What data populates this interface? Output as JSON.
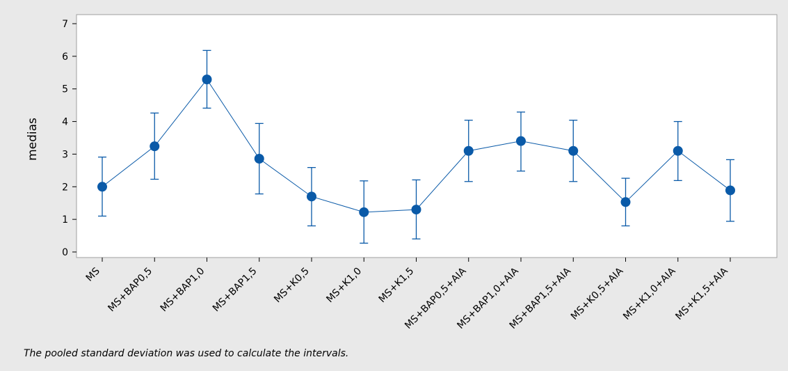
{
  "chart_data": {
    "type": "line",
    "title": "",
    "xlabel": "",
    "ylabel": "medias",
    "ylim": [
      0,
      7
    ],
    "yticks": [
      0,
      1,
      2,
      3,
      4,
      5,
      6,
      7
    ],
    "categories": [
      "MS",
      "MS+BAP0,5",
      "MS+BAP1,0",
      "MS+BAP1,5",
      "MS+K0,5",
      "MS+K1,0",
      "MS+K1,5",
      "MS+BAP0,5+AIA",
      "MS+BAP1,0+AIA",
      "MS+BAP1,5+AIA",
      "MS+K0,5+AIA",
      "MS+K1,0+AIA",
      "MS+K1,5+AIA"
    ],
    "series": [
      {
        "values": [
          2.0,
          3.24,
          5.29,
          2.86,
          1.7,
          1.22,
          1.3,
          3.1,
          3.4,
          3.1,
          1.53,
          3.1,
          1.89
        ],
        "lower": [
          1.1,
          2.23,
          4.41,
          1.78,
          0.8,
          0.27,
          0.4,
          2.16,
          2.48,
          2.16,
          0.8,
          2.19,
          0.94
        ],
        "upper": [
          2.91,
          4.26,
          6.18,
          3.94,
          2.59,
          2.18,
          2.21,
          4.04,
          4.29,
          4.04,
          2.26,
          4.0,
          2.83
        ]
      }
    ],
    "grid": false,
    "legend": "none",
    "colors": {
      "series": "#0a5aa8",
      "background": "#e9e9e9",
      "plot_background": "#ffffff"
    }
  },
  "footnote": "The pooled standard deviation was used to calculate the intervals."
}
